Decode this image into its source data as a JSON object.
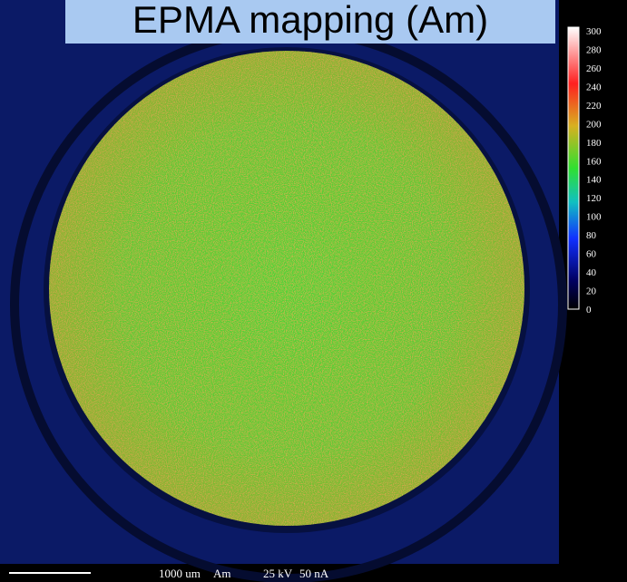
{
  "title": "EPMA mapping (Am)",
  "colorbar": {
    "ticks": [
      300,
      280,
      260,
      240,
      220,
      200,
      180,
      160,
      140,
      120,
      100,
      80,
      60,
      40,
      20,
      0
    ]
  },
  "footer": {
    "scale": "1000 um",
    "element": "Am",
    "voltage": "25 kV",
    "current": "50 nA"
  }
}
